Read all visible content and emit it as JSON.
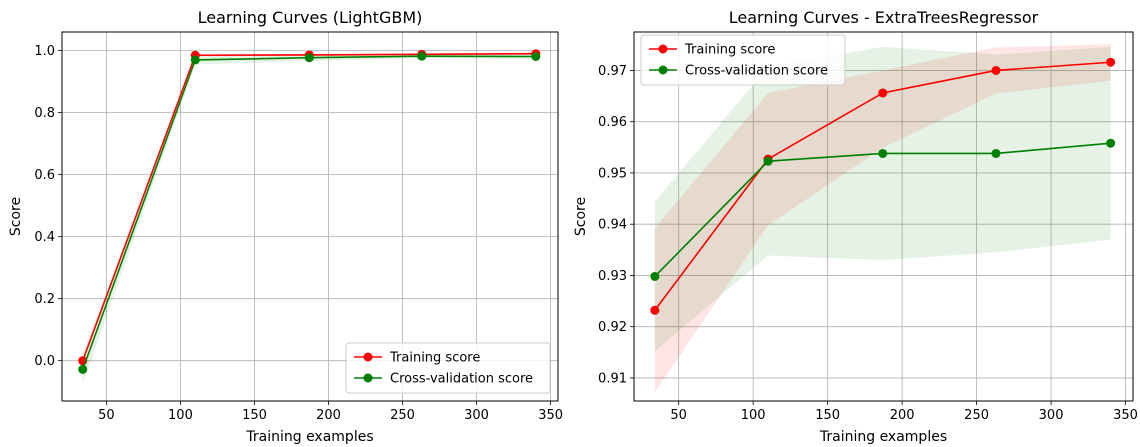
{
  "chart_data": [
    {
      "type": "line",
      "title": "Learning Curves (LightGBM)",
      "xlabel": "Training examples",
      "ylabel": "Score",
      "xlim": [
        20,
        355
      ],
      "ylim": [
        -0.13,
        1.06
      ],
      "xticks": [
        50,
        100,
        150,
        200,
        250,
        300,
        350
      ],
      "yticks": [
        0.0,
        0.2,
        0.4,
        0.6,
        0.8,
        1.0
      ],
      "ytick_decimals": 1,
      "grid": true,
      "legend": "lower-right",
      "x": [
        34,
        110,
        187,
        263,
        340
      ],
      "series": [
        {
          "name": "Training score",
          "color": "#ff0000",
          "values": [
            0.0,
            0.985,
            0.986,
            0.988,
            0.99
          ],
          "band_lower": [
            -0.005,
            0.982,
            0.983,
            0.985,
            0.987
          ],
          "band_upper": [
            0.005,
            0.988,
            0.989,
            0.991,
            0.993
          ]
        },
        {
          "name": "Cross-validation score",
          "color": "#008000",
          "values": [
            -0.028,
            0.97,
            0.977,
            0.982,
            0.981
          ],
          "band_lower": [
            -0.075,
            0.955,
            0.966,
            0.975,
            0.973
          ],
          "band_upper": [
            0.02,
            0.985,
            0.988,
            0.989,
            0.989
          ]
        }
      ]
    },
    {
      "type": "line",
      "title": "Learning Curves - ExtraTreesRegressor",
      "xlabel": "Training examples",
      "ylabel": "Score",
      "xlim": [
        20,
        355
      ],
      "ylim": [
        0.9055,
        0.9775
      ],
      "xticks": [
        50,
        100,
        150,
        200,
        250,
        300,
        350
      ],
      "yticks": [
        0.91,
        0.92,
        0.93,
        0.94,
        0.95,
        0.96,
        0.97
      ],
      "ytick_decimals": 2,
      "grid": true,
      "legend": "upper-left",
      "x": [
        34,
        110,
        187,
        263,
        340
      ],
      "series": [
        {
          "name": "Training score",
          "color": "#ff0000",
          "values": [
            0.9232,
            0.9527,
            0.9656,
            0.97,
            0.9716
          ],
          "band_lower": [
            0.9072,
            0.9398,
            0.9549,
            0.9655,
            0.968
          ],
          "band_upper": [
            0.9392,
            0.9656,
            0.97,
            0.9745,
            0.9751
          ]
        },
        {
          "name": "Cross-validation score",
          "color": "#008000",
          "values": [
            0.9298,
            0.9523,
            0.9538,
            0.9538,
            0.9558
          ],
          "band_lower": [
            0.9152,
            0.9339,
            0.933,
            0.9345,
            0.937
          ],
          "band_upper": [
            0.9444,
            0.9707,
            0.9746,
            0.9731,
            0.9746
          ]
        }
      ]
    }
  ]
}
